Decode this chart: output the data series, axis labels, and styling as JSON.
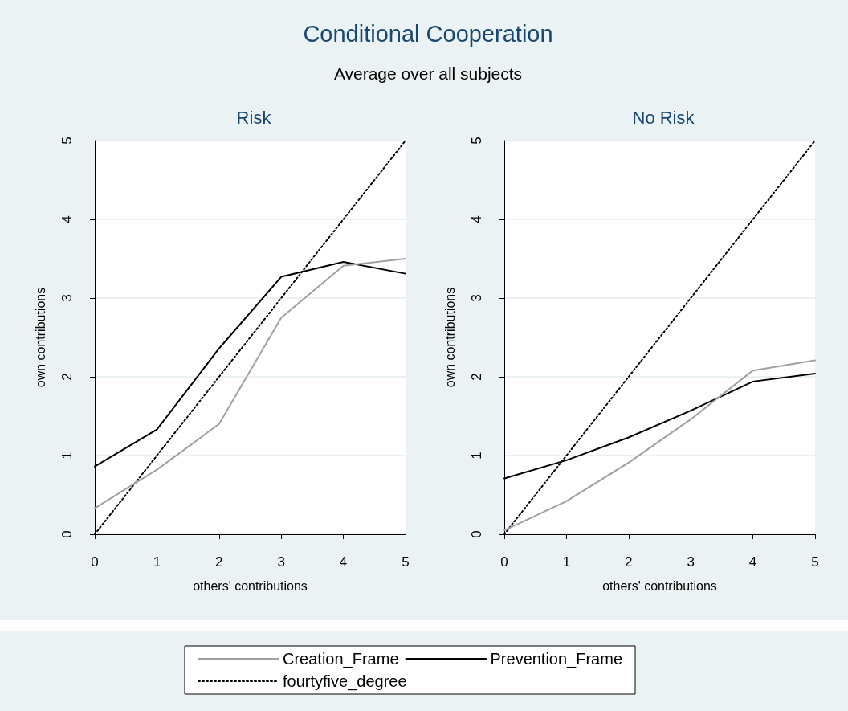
{
  "chart_data": [
    {
      "type": "line",
      "title": "Risk",
      "annotations": [
        "Conditional Cooperation",
        "Average over all subjects"
      ],
      "xlabel": "others' contributions",
      "ylabel": "own contributions",
      "x": [
        0,
        1,
        2,
        3,
        4,
        5
      ],
      "xlim": [
        0,
        5
      ],
      "xticks": [
        0,
        1,
        2,
        3,
        4,
        5
      ],
      "ylim": [
        0,
        5
      ],
      "yticks": [
        0,
        1,
        2,
        3,
        4,
        5
      ],
      "grid": "y",
      "legend": "bottom",
      "marker": "none",
      "series": [
        {
          "name": "Creation_Frame",
          "color": "#a0a0a0",
          "line_style": "solid",
          "values": [
            0.33,
            0.82,
            1.4,
            2.75,
            3.41,
            3.5
          ]
        },
        {
          "name": "Prevention_Frame",
          "color": "#000000",
          "line_style": "solid",
          "values": [
            0.86,
            1.33,
            2.36,
            3.27,
            3.46,
            3.31
          ]
        },
        {
          "name": "fourtyfive_degree",
          "color": "#000000",
          "line_style": "dotted",
          "values": [
            0,
            1,
            2,
            3,
            4,
            5
          ]
        }
      ]
    },
    {
      "type": "line",
      "title": "No Risk",
      "xlabel": "others' contributions",
      "ylabel": "own contributions",
      "x": [
        0,
        1,
        2,
        3,
        4,
        5
      ],
      "xlim": [
        0,
        5
      ],
      "xticks": [
        0,
        1,
        2,
        3,
        4,
        5
      ],
      "ylim": [
        0,
        5
      ],
      "yticks": [
        0,
        1,
        2,
        3,
        4,
        5
      ],
      "grid": "y",
      "marker": "none",
      "series": [
        {
          "color": "#a0a0a0",
          "line_style": "solid",
          "values": [
            0.05,
            0.42,
            0.91,
            1.46,
            2.08,
            2.21
          ]
        },
        {
          "color": "#000000",
          "line_style": "solid",
          "values": [
            0.71,
            0.94,
            1.23,
            1.57,
            1.94,
            2.04
          ]
        },
        {
          "color": "#000000",
          "line_style": "dotted",
          "values": [
            0,
            1,
            2,
            3,
            4,
            5
          ]
        }
      ]
    }
  ]
}
